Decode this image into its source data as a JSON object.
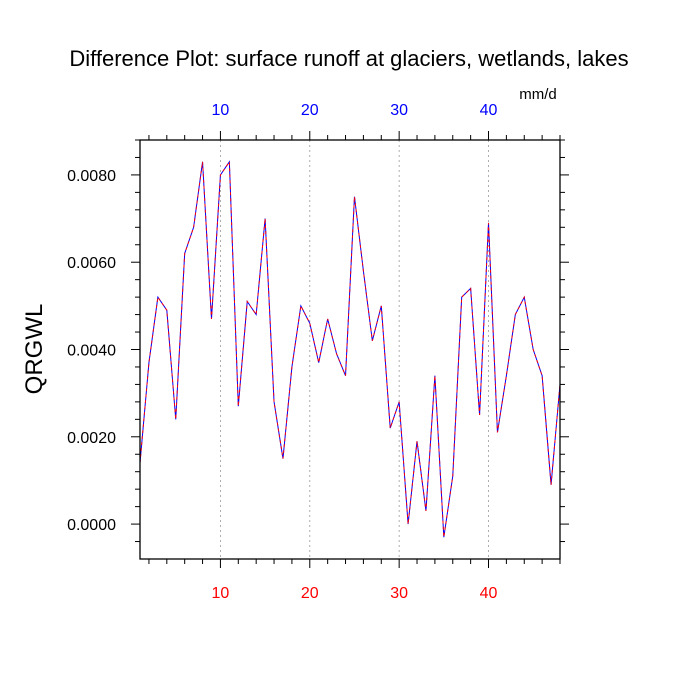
{
  "chart_data": {
    "type": "line",
    "title": "Difference Plot: surface runoff at glaciers, wetlands, lakes",
    "units": "mm/d",
    "ylabel": "QRGWL",
    "xlabel": "",
    "xlim": [
      1,
      48
    ],
    "ylim": [
      -0.0008,
      0.0088
    ],
    "x_ticks": [
      10,
      20,
      30,
      40
    ],
    "x_tick_labels": [
      "10",
      "20",
      "30",
      "40"
    ],
    "y_ticks": [
      0.0,
      0.002,
      0.004,
      0.006,
      0.008
    ],
    "y_tick_labels": [
      "0.0000",
      "0.0020",
      "0.0040",
      "0.0060",
      "0.0080"
    ],
    "grid": "vertical dashed at x ticks",
    "colors": {
      "top_axis_labels": "#0000ff",
      "bottom_axis_labels": "#ff0000",
      "line_a": "#0000ff",
      "line_b": "#ff0000"
    },
    "x": [
      1,
      2,
      3,
      4,
      5,
      6,
      7,
      8,
      9,
      10,
      11,
      12,
      13,
      14,
      15,
      16,
      17,
      18,
      19,
      20,
      21,
      22,
      23,
      24,
      25,
      26,
      27,
      28,
      29,
      30,
      31,
      32,
      33,
      34,
      35,
      36,
      37,
      38,
      39,
      40,
      41,
      42,
      43,
      44,
      45,
      46,
      47,
      48
    ],
    "series": [
      {
        "values": [
          0.0014,
          0.0037,
          0.0052,
          0.0049,
          0.0024,
          0.0062,
          0.0068,
          0.0083,
          0.0047,
          0.008,
          0.0083,
          0.0027,
          0.0051,
          0.0048,
          0.007,
          0.0028,
          0.0015,
          0.0036,
          0.005,
          0.0046,
          0.0037,
          0.0047,
          0.0039,
          0.0034,
          0.0075,
          0.0058,
          0.0042,
          0.005,
          0.0022,
          0.0028,
          0.0,
          0.0019,
          0.0003,
          0.0034,
          -0.0003,
          0.0011,
          0.0052,
          0.0054,
          0.0025,
          0.0069,
          0.0021,
          0.0034,
          0.0048,
          0.0052,
          0.004,
          0.0034,
          0.0009,
          0.0032
        ]
      },
      {
        "values": [
          0.0014,
          0.0037,
          0.0052,
          0.0049,
          0.0024,
          0.0062,
          0.0068,
          0.0083,
          0.0047,
          0.008,
          0.0083,
          0.0027,
          0.0051,
          0.0048,
          0.007,
          0.0028,
          0.0015,
          0.0036,
          0.005,
          0.0046,
          0.0037,
          0.0047,
          0.0039,
          0.0034,
          0.0075,
          0.0058,
          0.0042,
          0.005,
          0.0022,
          0.0028,
          0.0,
          0.0019,
          0.0003,
          0.0034,
          -0.0003,
          0.0011,
          0.0052,
          0.0054,
          0.0025,
          0.0069,
          0.0021,
          0.0034,
          0.0048,
          0.0052,
          0.004,
          0.0034,
          0.0009,
          0.0032
        ]
      }
    ]
  }
}
